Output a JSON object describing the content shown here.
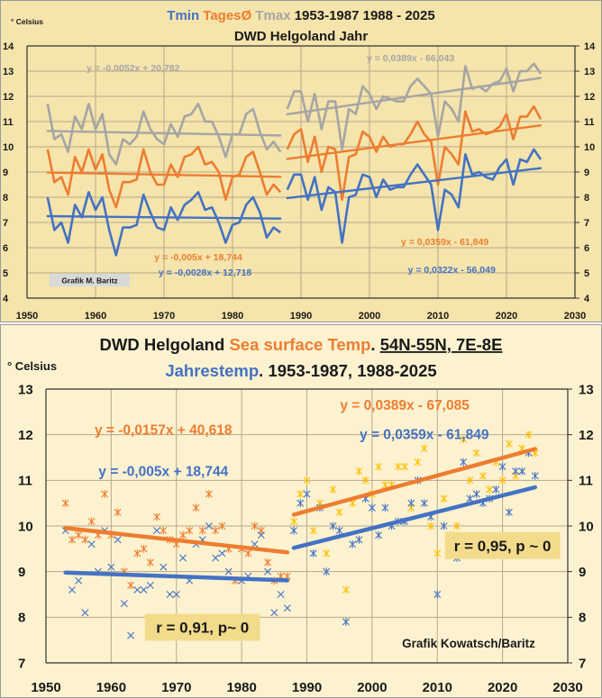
{
  "colors": {
    "tmin": "#4472c4",
    "mean": "#ed7d31",
    "tmax": "#a5a5a5",
    "sst_late": "#ffc000",
    "top_bg": "#f5e4ab",
    "bottom_bg": "#fdf2d0",
    "badge_bg": "#f2dc8c",
    "grid": "#b5a98a",
    "text": "#1a1a1a",
    "label_box": "#d9d9d9"
  },
  "chart_data": [
    {
      "type": "line",
      "title_parts": [
        {
          "text": "Tmin ",
          "color_key": "tmin"
        },
        {
          "text": "TagesØ ",
          "color_key": "mean"
        },
        {
          "text": "Tmax ",
          "color_key": "tmax"
        },
        {
          "text": "1953-1987  1988 - 2025",
          "color_key": "text"
        }
      ],
      "subtitle": "DWD Helgoland Jahr",
      "ylabel": "° Celsius",
      "xlabel": "",
      "xlim": [
        1950,
        2030
      ],
      "ylim": [
        4,
        14
      ],
      "xticks": [
        "1950",
        "1960",
        "1970",
        "1980",
        "1990",
        "2000",
        "2010",
        "2020",
        "2030"
      ],
      "yticks": [
        "4",
        "5",
        "6",
        "7",
        "8",
        "9",
        "10",
        "11",
        "12",
        "13",
        "14"
      ],
      "grid": true,
      "credit": "Grafik M. Baritz",
      "series": [
        {
          "name": "Tmax 1953-1987",
          "color_key": "tmax",
          "x_start": 1953,
          "values": [
            11.7,
            10.3,
            10.5,
            9.8,
            11.2,
            10.7,
            11.7,
            10.7,
            11.3,
            9.7,
            9.3,
            10.3,
            10.1,
            10.4,
            11.4,
            10.7,
            10.3,
            10.1,
            10.9,
            10.4,
            11.2,
            11.3,
            11.7,
            11.0,
            11.0,
            10.4,
            9.6,
            10.5,
            10.5,
            11.3,
            11.5,
            10.6,
            9.9,
            10.2,
            9.8
          ]
        },
        {
          "name": "Tmax 1988-2025",
          "color_key": "tmax",
          "x_start": 1988,
          "values": [
            11.5,
            12.2,
            12.2,
            11.0,
            12.1,
            10.7,
            11.8,
            11.8,
            9.9,
            11.5,
            11.3,
            12.4,
            12.1,
            11.5,
            12.0,
            11.9,
            11.8,
            11.8,
            12.4,
            12.7,
            12.4,
            12.1,
            10.4,
            11.8,
            11.5,
            11.0,
            13.2,
            12.3,
            12.4,
            12.2,
            12.5,
            12.6,
            13.1,
            12.2,
            13.0,
            13.0,
            13.3,
            12.9
          ]
        },
        {
          "name": "TagesØ 1953-1987",
          "color_key": "mean",
          "x_start": 1953,
          "values": [
            9.9,
            8.6,
            8.8,
            8.1,
            9.6,
            9.0,
            9.9,
            9.1,
            9.7,
            8.3,
            7.6,
            8.6,
            8.6,
            8.7,
            9.9,
            9.0,
            8.5,
            8.5,
            9.3,
            8.8,
            9.6,
            9.7,
            10.0,
            9.3,
            9.4,
            9.0,
            7.9,
            8.8,
            8.9,
            9.6,
            9.8,
            9.0,
            8.1,
            8.5,
            8.2
          ]
        },
        {
          "name": "TagesØ 1988-2025",
          "color_key": "mean",
          "x_start": 1988,
          "values": [
            9.9,
            10.5,
            10.7,
            9.4,
            10.4,
            9.0,
            10.0,
            9.9,
            7.9,
            9.6,
            9.7,
            10.6,
            10.4,
            9.8,
            10.4,
            10.0,
            10.1,
            10.1,
            10.5,
            11.0,
            10.5,
            10.2,
            8.5,
            10.0,
            9.7,
            9.3,
            11.4,
            10.6,
            10.7,
            10.5,
            10.6,
            10.8,
            11.3,
            10.3,
            11.2,
            11.2,
            11.6,
            11.1
          ]
        },
        {
          "name": "Tmin 1953-1987",
          "color_key": "tmin",
          "x_start": 1953,
          "values": [
            8.0,
            6.7,
            7.0,
            6.2,
            7.7,
            7.2,
            8.2,
            7.5,
            8.0,
            6.7,
            5.7,
            6.8,
            6.8,
            6.9,
            8.1,
            7.4,
            6.8,
            6.7,
            7.6,
            7.1,
            7.7,
            7.9,
            8.2,
            7.5,
            7.6,
            7.0,
            6.2,
            6.9,
            7.0,
            7.7,
            8.0,
            7.4,
            6.4,
            6.8,
            6.6
          ]
        },
        {
          "name": "Tmin 1988-2025",
          "color_key": "tmin",
          "x_start": 1988,
          "values": [
            8.3,
            8.9,
            8.9,
            7.9,
            8.8,
            7.5,
            8.4,
            8.2,
            6.2,
            8.0,
            8.1,
            8.9,
            8.8,
            8.0,
            8.7,
            8.3,
            8.4,
            8.4,
            8.9,
            9.3,
            8.9,
            8.5,
            6.7,
            8.3,
            8.1,
            7.6,
            9.7,
            8.9,
            9.0,
            8.8,
            8.7,
            9.2,
            9.5,
            8.5,
            9.5,
            9.4,
            9.9,
            9.5
          ]
        }
      ],
      "trendlines": [
        {
          "series": "Tmax 1953-1987",
          "color_key": "tmax",
          "label": "y = -0,0052x + 20,782",
          "slope": -0.0052,
          "intercept": 20.782,
          "x_range": [
            1953,
            1987
          ],
          "label_anchor": [
            1965.5,
            13.0
          ]
        },
        {
          "series": "Tmax 1988-2025",
          "color_key": "tmax",
          "label": "y = 0,0389x - 66,043",
          "slope": 0.0389,
          "intercept": -66.043,
          "x_range": [
            1988,
            2025
          ],
          "label_anchor": [
            2006,
            13.4
          ]
        },
        {
          "series": "TagesØ 1953-1987",
          "color_key": "mean",
          "label": "y = -0,005x + 18,744",
          "slope": -0.005,
          "intercept": 18.744,
          "x_range": [
            1953,
            1987
          ],
          "label_anchor": [
            1975,
            5.5
          ]
        },
        {
          "series": "TagesØ 1988-2025",
          "color_key": "mean",
          "label": "y = 0,0359x - 61,849",
          "slope": 0.0359,
          "intercept": -61.849,
          "x_range": [
            1988,
            2025
          ],
          "label_anchor": [
            2011,
            6.1
          ]
        },
        {
          "series": "Tmin 1953-1987",
          "color_key": "tmin",
          "label": "y = -0,0028x + 12,718",
          "slope": -0.0028,
          "intercept": 12.718,
          "x_range": [
            1953,
            1987
          ],
          "label_anchor": [
            1976,
            4.9
          ]
        },
        {
          "series": "Tmin 1988-2025",
          "color_key": "tmin",
          "label": "y = 0,0322x - 56,049",
          "slope": 0.0322,
          "intercept": -56.049,
          "x_range": [
            1988,
            2025
          ],
          "label_anchor": [
            2012,
            5.0
          ]
        }
      ]
    },
    {
      "type": "scatter",
      "title_parts": [
        {
          "text": "DWD Helgoland ",
          "color_key": "text",
          "underline": false
        },
        {
          "text": "Sea surface Temp",
          "color_key": "mean",
          "underline": false
        },
        {
          "text": ". ",
          "color_key": "text",
          "underline": false
        },
        {
          "text": "54N-55N, 7E-8E",
          "color_key": "text",
          "underline": true
        }
      ],
      "subtitle_parts": [
        {
          "text": "Jahrestemp",
          "color_key": "tmin"
        },
        {
          "text": ". 1953-1987, 1988-2025",
          "color_key": "text"
        }
      ],
      "ylabel": "° Celsius",
      "xlabel": "",
      "xlim": [
        1950,
        2030
      ],
      "ylim": [
        7,
        13
      ],
      "xticks": [
        "1950",
        "1960",
        "1970",
        "1980",
        "1990",
        "2000",
        "2010",
        "2020",
        "2030"
      ],
      "yticks": [
        "7",
        "8",
        "9",
        "10",
        "11",
        "12",
        "13"
      ],
      "grid": true,
      "credit": "Grafik Kowatsch/Baritz",
      "annotations": [
        {
          "text": "r = 0,91, p~ 0",
          "anchor": [
            1974,
            7.78
          ]
        },
        {
          "text": "r = 0,95, p ~ 0",
          "anchor": [
            2020,
            9.57
          ]
        }
      ],
      "series": [
        {
          "name": "DWD TagesØ 1953-1987",
          "color_key": "mean",
          "marker": "asterisk",
          "x_start": 1953,
          "values": [
            10.5,
            9.7,
            9.8,
            9.7,
            10.1,
            9.8,
            10.7,
            9.8,
            10.3,
            9.0,
            8.7,
            9.4,
            9.5,
            9.2,
            10.2,
            9.9,
            9.7,
            9.6,
            9.8,
            9.9,
            10.4,
            9.9,
            10.7,
            9.9,
            10.0,
            9.5,
            8.8,
            9.5,
            9.4,
            10.0,
            9.9,
            9.2,
            8.8,
            8.9,
            8.9
          ]
        },
        {
          "name": "SST 1953-1987",
          "color_key": "tmin",
          "marker": "cross",
          "x_start": 1953,
          "values": [
            9.9,
            8.6,
            8.8,
            8.1,
            9.6,
            9.0,
            9.9,
            9.1,
            9.7,
            8.3,
            7.6,
            8.6,
            8.6,
            8.7,
            9.9,
            9.1,
            8.5,
            8.5,
            9.3,
            8.8,
            9.6,
            9.7,
            10.0,
            9.3,
            9.4,
            9.0,
            7.9,
            8.8,
            8.9,
            9.6,
            9.8,
            9.0,
            8.1,
            8.5,
            8.2
          ]
        },
        {
          "name": "DWD TagesØ 1988-2025",
          "color_key": "sst_late",
          "marker": "asterisk",
          "x_start": 1988,
          "values": [
            10.1,
            10.7,
            11.0,
            9.9,
            10.5,
            9.4,
            10.8,
            10.3,
            8.6,
            10.5,
            11.2,
            11.0,
            10.7,
            11.3,
            10.9,
            10.9,
            11.3,
            11.3,
            10.4,
            11.4,
            11.7,
            10.0,
            9.4,
            10.6,
            9.8,
            10.0,
            11.9,
            11.0,
            11.6,
            11.1,
            10.8,
            11.4,
            11.0,
            11.8,
            11.1,
            11.7,
            12.0,
            11.6
          ]
        },
        {
          "name": "SST 1988-2025",
          "color_key": "tmin",
          "marker": "asterisk",
          "x_start": 1988,
          "values": [
            9.9,
            10.5,
            10.7,
            9.4,
            10.4,
            9.0,
            10.0,
            9.9,
            7.9,
            9.6,
            9.7,
            10.6,
            10.4,
            9.8,
            10.4,
            10.0,
            10.1,
            10.1,
            10.5,
            11.0,
            10.5,
            10.2,
            8.5,
            10.0,
            9.7,
            9.3,
            11.4,
            10.6,
            10.7,
            10.5,
            10.6,
            10.8,
            11.3,
            10.3,
            11.2,
            11.2,
            11.6,
            11.1
          ]
        }
      ],
      "trendlines": [
        {
          "series": "DWD TagesØ 1953-1987",
          "color_key": "mean",
          "label": "y = -0,0157x + 40,618",
          "slope": -0.0157,
          "intercept": 40.618,
          "x_range": [
            1953,
            1987
          ],
          "label_anchor": [
            1968,
            12.0
          ]
        },
        {
          "series": "SST 1953-1987",
          "color_key": "tmin",
          "label": "y = -0,005x + 18,744",
          "slope": -0.005,
          "intercept": 18.744,
          "x_range": [
            1953,
            1987
          ],
          "label_anchor": [
            1968,
            11.1
          ]
        },
        {
          "series": "DWD TagesØ 1988-2025",
          "color_key": "mean",
          "label": "y = 0,0389x - 67,085",
          "slope": 0.0389,
          "intercept": -67.085,
          "x_range": [
            1988,
            2025
          ],
          "label_anchor": [
            2005,
            12.55
          ]
        },
        {
          "series": "SST 1988-2025",
          "color_key": "tmin",
          "label": "y = 0,0359x - 61,849",
          "slope": 0.0359,
          "intercept": -61.849,
          "x_range": [
            1988,
            2025
          ],
          "label_anchor": [
            2008,
            11.9
          ]
        }
      ]
    }
  ]
}
